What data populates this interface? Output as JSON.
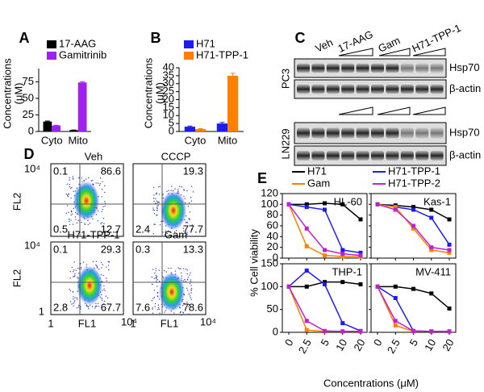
{
  "chart_data": [
    {
      "type": "bar",
      "panel": "A",
      "ylabel_lines": [
        "Concentrations",
        "(μM)"
      ],
      "categories": [
        "Cyto",
        "Mito"
      ],
      "series": [
        {
          "name": "17-AAG",
          "color": "#000000",
          "values": [
            15,
            2
          ],
          "errors": [
            0.8,
            0.2
          ]
        },
        {
          "name": "Gamitrinib",
          "color": "#a020f0",
          "values": [
            9,
            74
          ],
          "errors": [
            0.4,
            1.2
          ]
        }
      ],
      "ylim": [
        0,
        95
      ],
      "yticks": [
        0,
        25,
        50,
        75
      ]
    },
    {
      "type": "bar",
      "panel": "B",
      "ylabel_lines": [
        "Concentrations",
        "(μM)"
      ],
      "categories": [
        "Cyto",
        "Mito"
      ],
      "series": [
        {
          "name": "H71",
          "color": "#1c1cf0",
          "values": [
            3,
            5
          ],
          "errors": [
            0.4,
            0.7
          ]
        },
        {
          "name": "H71-TPP-1",
          "color": "#ff8000",
          "values": [
            1.5,
            35
          ],
          "errors": [
            0.3,
            1.5
          ]
        }
      ],
      "ylim": [
        0,
        40
      ],
      "yticks": [
        0,
        5,
        10,
        15,
        20,
        25,
        30,
        35,
        40
      ]
    },
    {
      "type": "line",
      "panel": "E",
      "ylabel": "% Cell viability",
      "xlabel": "Concentrations (μM)",
      "categories": [
        "0",
        "2.5",
        "5",
        "10",
        "20"
      ],
      "series": [
        {
          "name": "H71",
          "color": "#000000"
        },
        {
          "name": "H71-TPP-1",
          "color": "#1c1cf0"
        },
        {
          "name": "Gam",
          "color": "#ff8000"
        },
        {
          "name": "H71-TPP-2",
          "color": "#c020d0"
        }
      ],
      "panels": [
        {
          "title": "HL-60",
          "ylim": [
            0,
            120
          ],
          "yticks": [
            0,
            20,
            40,
            60,
            80,
            100,
            120
          ],
          "values": [
            [
              100,
              100,
              102,
              100,
              72
            ],
            [
              100,
              95,
              90,
              15,
              10
            ],
            [
              100,
              22,
              5,
              3,
              3
            ],
            [
              100,
              55,
              15,
              8,
              5
            ]
          ]
        },
        {
          "title": "Kas-1",
          "ylim": [
            0,
            120
          ],
          "yticks": [
            0,
            20,
            40,
            60,
            80,
            100,
            120
          ],
          "values": [
            [
              100,
              98,
              95,
              90,
              72
            ],
            [
              100,
              95,
              90,
              75,
              25
            ],
            [
              100,
              95,
              55,
              15,
              10
            ],
            [
              100,
              90,
              60,
              20,
              15
            ]
          ]
        },
        {
          "title": "THP-1",
          "ylim": [
            0,
            150
          ],
          "yticks": [
            0,
            50,
            100,
            150
          ],
          "values": [
            [
              100,
              100,
              110,
              110,
              105
            ],
            [
              100,
              135,
              105,
              20,
              3
            ],
            [
              100,
              5,
              2,
              2,
              2
            ],
            [
              100,
              25,
              3,
              2,
              2
            ]
          ]
        },
        {
          "title": "MV-411",
          "ylim": [
            0,
            150
          ],
          "yticks": [
            0,
            50,
            100,
            150
          ],
          "values": [
            [
              100,
              100,
              95,
              85,
              52
            ],
            [
              100,
              75,
              3,
              2,
              2
            ],
            [
              100,
              15,
              2,
              2,
              2
            ],
            [
              100,
              25,
              3,
              2,
              2
            ]
          ]
        }
      ]
    }
  ],
  "blot": {
    "panel": "C",
    "lanes": [
      "Veh",
      "17-AAG",
      "Gam",
      "H71-TPP-1"
    ],
    "cell_lines": [
      {
        "name": "PC3",
        "rows": [
          "Hsp70",
          "β-actin"
        ]
      },
      {
        "name": "LN229",
        "rows": [
          "Hsp70",
          "β-actin"
        ]
      }
    ]
  },
  "flow": {
    "panel": "D",
    "xlabel": "FL1",
    "ylabel": "FL2",
    "axis_ticks": [
      1,
      {
        "value": 10000,
        "label": "10⁴"
      }
    ],
    "plots": [
      {
        "title": "Veh",
        "quadrants": {
          "ul": 0.1,
          "ur": 86.6,
          "ll": 0.5,
          "lr": 12.7
        }
      },
      {
        "title": "CCCP",
        "quadrants": {
          "ur": 19.3,
          "ll": 2.4,
          "lr": 77.7
        }
      },
      {
        "title": "H71-TPP-1",
        "quadrants": {
          "ul": 0.1,
          "ur": 29.3,
          "ll": 2.8,
          "lr": 67.7
        }
      },
      {
        "title": "Gam",
        "quadrants": {
          "ul": 0.3,
          "ur": 13.3,
          "ll": 7.6,
          "lr": 78.6
        }
      }
    ]
  }
}
